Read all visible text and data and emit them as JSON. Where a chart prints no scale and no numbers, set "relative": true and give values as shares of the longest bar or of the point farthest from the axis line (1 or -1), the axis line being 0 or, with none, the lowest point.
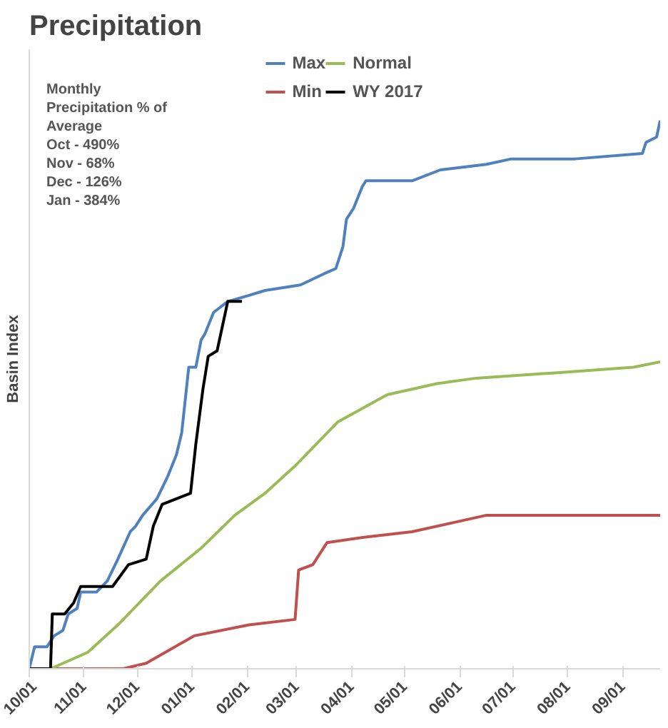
{
  "chart_data": {
    "type": "line",
    "title": "Precipitation",
    "ylabel": "Basin Index",
    "relative": true,
    "legend": "top",
    "grid": false,
    "marker": "none",
    "line_style": "solid",
    "annotations": [
      "Monthly",
      "Precipitation % of",
      "Average",
      "Oct - 490%",
      "Nov - 68%",
      "Dec - 126%",
      "Jan - 384%"
    ],
    "xlim": [
      "2016-10-01",
      "2017-09-22"
    ],
    "xticks": [
      {
        "value": "2016-10-01",
        "label": "10/01"
      },
      {
        "value": "2016-11-01",
        "label": "11/01"
      },
      {
        "value": "2016-12-01",
        "label": "12/01"
      },
      {
        "value": "2017-01-01",
        "label": "01/01"
      },
      {
        "value": "2017-02-01",
        "label": "02/01"
      },
      {
        "value": "2017-03-01",
        "label": "03/01"
      },
      {
        "value": "2017-04-01",
        "label": "04/01"
      },
      {
        "value": "2017-05-01",
        "label": "05/01"
      },
      {
        "value": "2017-06-01",
        "label": "06/01"
      },
      {
        "value": "2017-07-01",
        "label": "07/01"
      },
      {
        "value": "2017-08-01",
        "label": "08/01"
      },
      {
        "value": "2017-09-01",
        "label": "09/01"
      }
    ],
    "series": [
      {
        "name": "Max",
        "color": "#4f81bd",
        "x": [
          "2016-10-01",
          "2016-10-04",
          "2016-10-11",
          "2016-10-15",
          "2016-10-20",
          "2016-10-23",
          "2016-10-28",
          "2016-10-30",
          "2016-11-08",
          "2016-11-14",
          "2016-11-20",
          "2016-11-27",
          "2016-11-30",
          "2016-12-04",
          "2016-12-12",
          "2016-12-18",
          "2016-12-23",
          "2016-12-26",
          "2016-12-30",
          "2017-01-03",
          "2017-01-06",
          "2017-01-08",
          "2017-01-13",
          "2017-01-21",
          "2017-02-01",
          "2017-02-11",
          "2017-03-03",
          "2017-03-16",
          "2017-03-23",
          "2017-03-27",
          "2017-03-29",
          "2017-04-02",
          "2017-04-07",
          "2017-04-09",
          "2017-05-05",
          "2017-05-21",
          "2017-06-16",
          "2017-06-30",
          "2017-08-05",
          "2017-09-12",
          "2017-09-14",
          "2017-09-20",
          "2017-09-22"
        ],
        "values": [
          0,
          0.04,
          0.04,
          0.06,
          0.07,
          0.1,
          0.11,
          0.14,
          0.14,
          0.16,
          0.2,
          0.25,
          0.26,
          0.28,
          0.31,
          0.35,
          0.39,
          0.43,
          0.55,
          0.55,
          0.6,
          0.61,
          0.65,
          0.67,
          0.68,
          0.69,
          0.7,
          0.72,
          0.73,
          0.77,
          0.82,
          0.84,
          0.88,
          0.89,
          0.89,
          0.91,
          0.92,
          0.93,
          0.93,
          0.94,
          0.96,
          0.97,
          1
        ]
      },
      {
        "name": "Min",
        "color": "#c0504d",
        "x": [
          "2016-10-01",
          "2016-11-23",
          "2016-12-06",
          "2017-01-02",
          "2017-02-02",
          "2017-02-28",
          "2017-03-02",
          "2017-03-10",
          "2017-03-18",
          "2017-04-08",
          "2017-05-05",
          "2017-06-02",
          "2017-06-16",
          "2017-09-22"
        ],
        "values": [
          0,
          0,
          0.01,
          0.06,
          0.08,
          0.09,
          0.18,
          0.19,
          0.23,
          0.24,
          0.25,
          0.27,
          0.28,
          0.28
        ]
      },
      {
        "name": "Normal",
        "color": "#9bbb59",
        "x": [
          "2016-10-01",
          "2016-10-13",
          "2016-11-03",
          "2016-11-20",
          "2016-12-14",
          "2017-01-06",
          "2017-01-25",
          "2017-02-11",
          "2017-02-28",
          "2017-03-24",
          "2017-04-21",
          "2017-05-19",
          "2017-06-10",
          "2017-07-26",
          "2017-09-07",
          "2017-09-22"
        ],
        "values": [
          0,
          0,
          0.03,
          0.08,
          0.16,
          0.22,
          0.28,
          0.32,
          0.37,
          0.45,
          0.5,
          0.52,
          0.53,
          0.54,
          0.55,
          0.56
        ]
      },
      {
        "name": "WY 2017",
        "color": "#000000",
        "x": [
          "2016-10-01",
          "2016-10-13",
          "2016-10-14",
          "2016-10-21",
          "2016-10-26",
          "2016-10-30",
          "2016-11-17",
          "2016-11-26",
          "2016-12-06",
          "2016-12-10",
          "2016-12-15",
          "2016-12-23",
          "2016-12-31",
          "2017-01-03",
          "2017-01-07",
          "2017-01-10",
          "2017-01-15",
          "2017-01-21",
          "2017-01-29"
        ],
        "values": [
          0,
          0,
          0.1,
          0.1,
          0.12,
          0.15,
          0.15,
          0.19,
          0.2,
          0.26,
          0.3,
          0.31,
          0.32,
          0.41,
          0.51,
          0.57,
          0.58,
          0.67,
          0.67
        ]
      }
    ]
  }
}
